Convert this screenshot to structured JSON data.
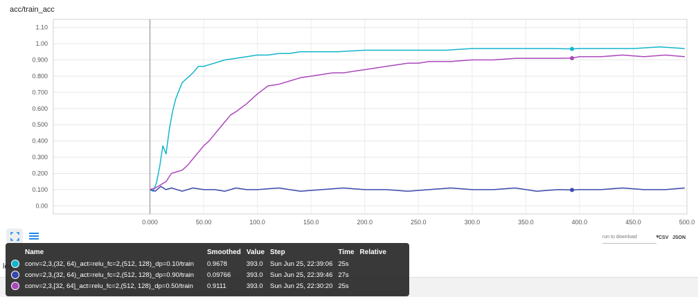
{
  "card": {
    "title": "acc/train_acc"
  },
  "chart_data": {
    "type": "line",
    "title": "acc/train_acc",
    "xlabel": "",
    "ylabel": "",
    "xlim": [
      -90,
      500
    ],
    "ylim": [
      -0.05,
      1.15
    ],
    "x_ticks": [
      0,
      50,
      100,
      150,
      200,
      250,
      300,
      350,
      400,
      450,
      500
    ],
    "x_tick_labels": [
      "0.000",
      "50.00",
      "100.0",
      "150.0",
      "200.0",
      "250.0",
      "300.0",
      "350.0",
      "400.0",
      "450.0",
      "500.0"
    ],
    "y_ticks": [
      0,
      0.1,
      0.2,
      0.3,
      0.4,
      0.5,
      0.6,
      0.7,
      0.8,
      0.9,
      1.0,
      1.1
    ],
    "y_tick_labels": [
      "0.00",
      "0.100",
      "0.200",
      "0.300",
      "0.400",
      "0.500",
      "0.600",
      "0.700",
      "0.800",
      "0.900",
      "1.00",
      "1.10"
    ],
    "grid": true,
    "highlight_step": 393,
    "series": [
      {
        "color": "#12b5cb",
        "x": [
          0,
          3,
          6,
          9,
          12,
          15,
          18,
          21,
          24,
          27,
          30,
          35,
          40,
          45,
          50,
          60,
          70,
          80,
          90,
          100,
          110,
          120,
          130,
          140,
          150,
          175,
          200,
          225,
          250,
          275,
          300,
          325,
          350,
          375,
          393,
          400,
          425,
          450,
          475,
          498
        ],
        "y": [
          0.1,
          0.09,
          0.14,
          0.24,
          0.37,
          0.32,
          0.47,
          0.58,
          0.66,
          0.71,
          0.76,
          0.79,
          0.82,
          0.86,
          0.86,
          0.88,
          0.9,
          0.91,
          0.92,
          0.93,
          0.93,
          0.94,
          0.94,
          0.95,
          0.95,
          0.95,
          0.96,
          0.96,
          0.96,
          0.96,
          0.97,
          0.97,
          0.97,
          0.97,
          0.968,
          0.97,
          0.97,
          0.97,
          0.98,
          0.97
        ]
      },
      {
        "color": "#3949ab",
        "x": [
          0,
          5,
          10,
          15,
          20,
          30,
          40,
          50,
          60,
          70,
          80,
          90,
          100,
          120,
          140,
          160,
          180,
          200,
          220,
          240,
          260,
          280,
          300,
          320,
          340,
          360,
          380,
          393,
          400,
          420,
          440,
          460,
          480,
          498
        ],
        "y": [
          0.1,
          0.09,
          0.12,
          0.1,
          0.11,
          0.09,
          0.11,
          0.1,
          0.1,
          0.09,
          0.11,
          0.1,
          0.1,
          0.11,
          0.09,
          0.1,
          0.11,
          0.1,
          0.1,
          0.09,
          0.1,
          0.11,
          0.1,
          0.1,
          0.11,
          0.09,
          0.1,
          0.0977,
          0.1,
          0.1,
          0.11,
          0.1,
          0.1,
          0.11
        ]
      },
      {
        "color": "#ab47bc",
        "x": [
          0,
          5,
          10,
          15,
          20,
          25,
          30,
          35,
          40,
          45,
          50,
          55,
          60,
          65,
          70,
          75,
          80,
          90,
          100,
          110,
          120,
          130,
          140,
          150,
          160,
          170,
          180,
          190,
          200,
          210,
          220,
          230,
          240,
          250,
          260,
          280,
          300,
          320,
          340,
          360,
          380,
          393,
          400,
          420,
          440,
          460,
          480,
          498
        ],
        "y": [
          0.1,
          0.11,
          0.13,
          0.15,
          0.2,
          0.21,
          0.22,
          0.25,
          0.29,
          0.33,
          0.37,
          0.4,
          0.44,
          0.48,
          0.52,
          0.56,
          0.58,
          0.63,
          0.69,
          0.74,
          0.75,
          0.77,
          0.79,
          0.8,
          0.81,
          0.82,
          0.82,
          0.83,
          0.84,
          0.85,
          0.86,
          0.87,
          0.88,
          0.88,
          0.89,
          0.89,
          0.9,
          0.9,
          0.91,
          0.91,
          0.91,
          0.9111,
          0.92,
          0.92,
          0.93,
          0.92,
          0.93,
          0.92
        ]
      }
    ]
  },
  "toolbar": {
    "download_label": "run to download",
    "csv_label": "CSV",
    "json_label": "JSON"
  },
  "partial_card": {
    "title_fragment": "los"
  },
  "tooltip": {
    "headers": {
      "name": "Name",
      "smoothed": "Smoothed",
      "value": "Value",
      "step": "Step",
      "time": "Time",
      "relative": "Relative"
    },
    "rows": [
      {
        "color": "#12b5cb",
        "name": "conv=2,3,(32, 64)_act=relu_fc=2,(512, 128)_dp=0.10/train",
        "smoothed": "0.9678",
        "value": "393.0",
        "step": "Sun Jun 25, 22:39:06",
        "time": "25s",
        "relative": ""
      },
      {
        "color": "#3949ab",
        "name": "conv=2,3,(32, 64)_act=relu_fc=2,(512, 128)_dp=0.90/train",
        "smoothed": "0.09766",
        "value": "393.0",
        "step": "Sun Jun 25, 22:39:46",
        "time": "27s",
        "relative": ""
      },
      {
        "color": "#ab47bc",
        "name": "conv=2,3,[32, 64]_act=relu_fc=2,(512, 128)_dp=0.50/train",
        "smoothed": "0.9111",
        "value": "393.0",
        "step": "Sun Jun 25, 22:30:20",
        "time": "25s",
        "relative": ""
      }
    ]
  }
}
